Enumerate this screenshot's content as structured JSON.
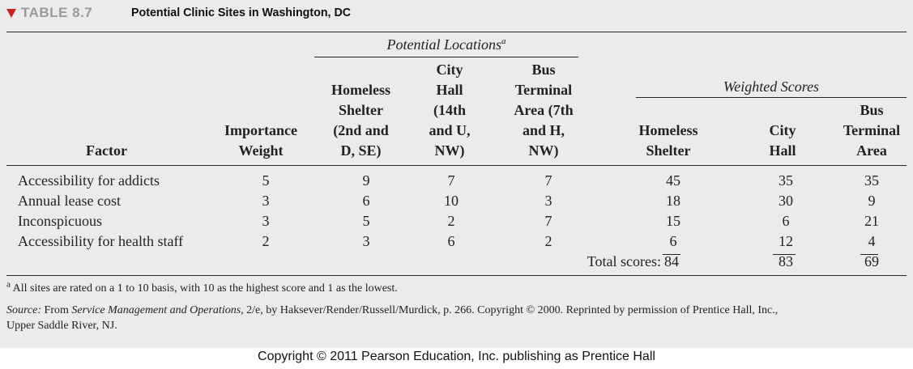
{
  "title": {
    "number": "TABLE 8.7",
    "caption": "Potential Clinic Sites in Washington, DC"
  },
  "groups": {
    "potential_locations": "Potential Locations",
    "potential_locations_note": "a",
    "weighted_scores": "Weighted Scores"
  },
  "columns": {
    "factor": "Factor",
    "weight": [
      "Importance",
      "Weight"
    ],
    "homeless": [
      "Homeless",
      "Shelter",
      "(2nd and",
      "D, SE)"
    ],
    "city_hall": [
      "City",
      "Hall",
      "(14th",
      "and U,",
      "NW)"
    ],
    "bus_terminal": [
      "Bus",
      "Terminal",
      "Area (7th",
      "and H,",
      "NW)"
    ],
    "ws_homeless": [
      "Homeless",
      "Shelter"
    ],
    "ws_city_hall": [
      "City",
      "Hall"
    ],
    "ws_bus": [
      "Bus",
      "Terminal",
      "Area"
    ]
  },
  "rows": [
    {
      "factor": "Accessibility for addicts",
      "weight": "5",
      "homeless": "9",
      "city_hall": "7",
      "bus": "7",
      "ws_homeless": "45",
      "ws_city_hall": "35",
      "ws_bus": "35"
    },
    {
      "factor": "Annual lease cost",
      "weight": "3",
      "homeless": "6",
      "city_hall": "10",
      "bus": "3",
      "ws_homeless": "18",
      "ws_city_hall": "30",
      "ws_bus": "9"
    },
    {
      "factor": "Inconspicuous",
      "weight": "3",
      "homeless": "5",
      "city_hall": "2",
      "bus": "7",
      "ws_homeless": "15",
      "ws_city_hall": "6",
      "ws_bus": "21"
    },
    {
      "factor": "Accessibility for health staff",
      "weight": "2",
      "homeless": "3",
      "city_hall": "6",
      "bus": "2",
      "ws_homeless": "6",
      "ws_city_hall": "12",
      "ws_bus": "4"
    }
  ],
  "totals": {
    "label": "Total scores:",
    "homeless": "84",
    "city_hall": "83",
    "bus": "69"
  },
  "footnote": {
    "marker": "a",
    "text": "All sites are rated on a 1 to 10 basis, with 10 as the highest score and 1 as the lowest."
  },
  "source": {
    "label": "Source:",
    "pre": "From",
    "book": "Service Management and Operations",
    "rest_line1": ", 2/e, by Haksever/Render/Russell/Murdick, p. 266. Copyright © 2000. Reprinted by permission of Prentice Hall, Inc.,",
    "line2": "Upper Saddle River, NJ."
  },
  "copyright": "Copyright © 2011 Pearson Education, Inc. publishing as Prentice Hall"
}
